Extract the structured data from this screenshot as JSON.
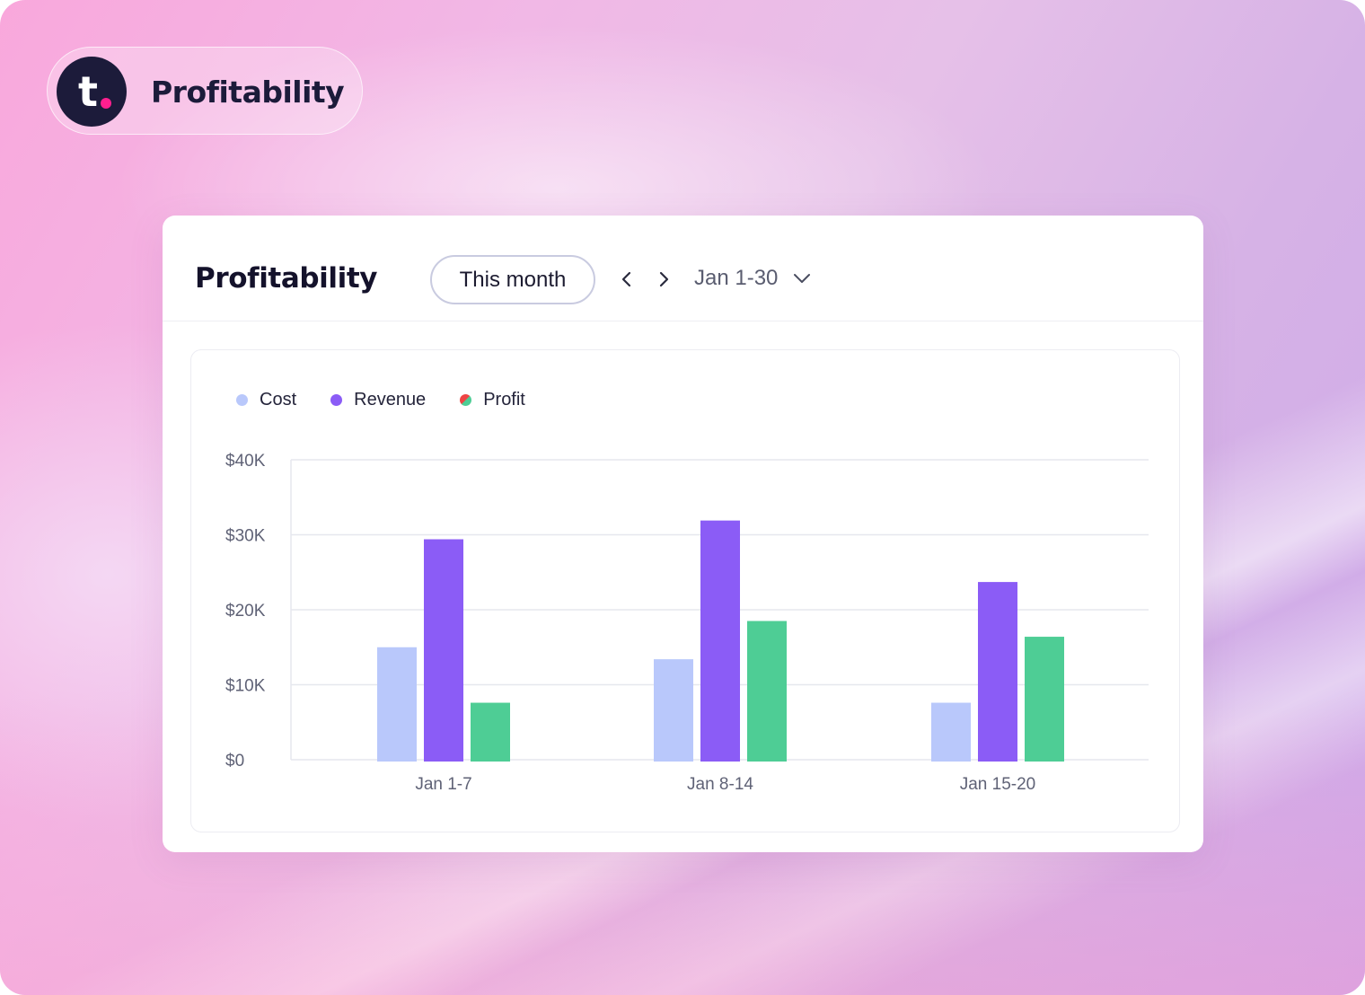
{
  "brand": {
    "logo_letter": "t",
    "name": "Profitability"
  },
  "card": {
    "title": "Profitability",
    "period_label": "This month",
    "prev_icon": "chevron-left-icon",
    "next_icon": "chevron-right-icon",
    "range_label": "Jan 1-30",
    "range_icon": "chevron-down-icon"
  },
  "colors": {
    "cost": "#b9c8fb",
    "revenue": "#8b5cf6",
    "profit": "#4ecd95",
    "brand_dark": "#1c1b3a",
    "brand_accent": "#ff1f8f"
  },
  "legend": [
    {
      "label": "Cost",
      "color": "#b9c8fb"
    },
    {
      "label": "Revenue",
      "color": "#8b5cf6"
    },
    {
      "label": "Profit",
      "color": "#4ecd95"
    }
  ],
  "chart_data": {
    "type": "bar",
    "categories": [
      "Jan 1-7",
      "Jan 8-14",
      "Jan 15-20"
    ],
    "series": [
      {
        "name": "Cost",
        "values": [
          15000,
          13400,
          7600
        ]
      },
      {
        "name": "Revenue",
        "values": [
          29400,
          31900,
          23700
        ]
      },
      {
        "name": "Profit",
        "values": [
          7600,
          18500,
          16400
        ]
      }
    ],
    "y_ticks": [
      "$0",
      "$10K",
      "$20K",
      "$30K",
      "$40K"
    ],
    "ylim": [
      0,
      40000
    ],
    "grid": true,
    "legend_position": "top-left"
  }
}
